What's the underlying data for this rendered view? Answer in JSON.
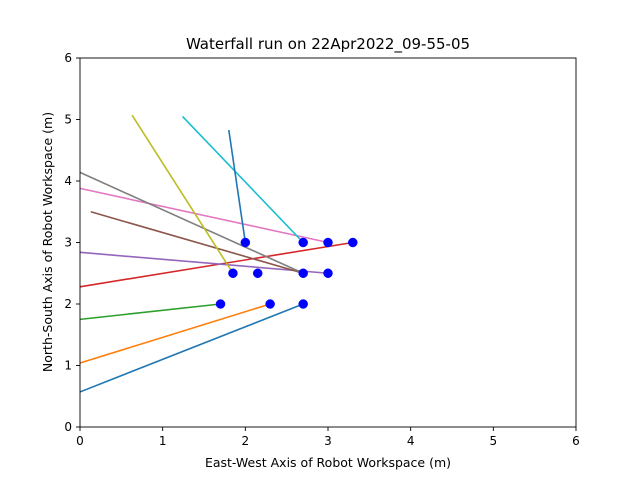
{
  "chart_data": {
    "type": "line",
    "title": "Waterfall run on 22Apr2022_09-55-05",
    "xlabel": "East-West Axis of Robot Workspace (m)",
    "ylabel": "North-South Axis of Robot Workspace (m)",
    "xlim": [
      0,
      6
    ],
    "ylim": [
      0,
      6
    ],
    "xticks": [
      "0",
      "1",
      "2",
      "3",
      "4",
      "5",
      "6"
    ],
    "yticks": [
      "0",
      "1",
      "2",
      "3",
      "4",
      "5",
      "6"
    ],
    "grid": false,
    "marker_color": "#0000ff",
    "series": [
      {
        "color": "#1f77b4",
        "points": [
          [
            0.0,
            0.57
          ],
          [
            2.7,
            2.0
          ]
        ]
      },
      {
        "color": "#ff7f0e",
        "points": [
          [
            0.0,
            1.04
          ],
          [
            2.3,
            2.0
          ]
        ]
      },
      {
        "color": "#2ca02c",
        "points": [
          [
            0.0,
            1.75
          ],
          [
            1.7,
            2.0
          ]
        ]
      },
      {
        "color": "#d62728",
        "points": [
          [
            0.0,
            2.28
          ],
          [
            3.3,
            3.0
          ]
        ]
      },
      {
        "color": "#9467bd",
        "points": [
          [
            0.0,
            2.84
          ],
          [
            3.0,
            2.5
          ]
        ]
      },
      {
        "color": "#8c564b",
        "points": [
          [
            0.13,
            3.5
          ],
          [
            2.7,
            2.5
          ]
        ]
      },
      {
        "color": "#e377c2",
        "points": [
          [
            0.0,
            3.88
          ],
          [
            3.0,
            3.0
          ]
        ]
      },
      {
        "color": "#7f7f7f",
        "points": [
          [
            0.0,
            4.14
          ],
          [
            2.7,
            2.5
          ]
        ]
      },
      {
        "color": "#bcbd22",
        "points": [
          [
            0.63,
            5.07
          ],
          [
            1.85,
            2.5
          ]
        ]
      },
      {
        "color": "#17becf",
        "points": [
          [
            1.24,
            5.05
          ],
          [
            2.7,
            3.0
          ]
        ]
      },
      {
        "color": "#1f77b4",
        "points": [
          [
            1.8,
            4.83
          ],
          [
            2.0,
            3.0
          ]
        ]
      },
      {
        "color": "#ff7f0e",
        "points": [
          [
            2.15,
            2.5
          ],
          [
            2.15,
            2.5
          ]
        ]
      }
    ],
    "markers": [
      [
        2.7,
        2.0
      ],
      [
        2.3,
        2.0
      ],
      [
        1.7,
        2.0
      ],
      [
        1.85,
        2.5
      ],
      [
        2.15,
        2.5
      ],
      [
        2.7,
        2.5
      ],
      [
        3.0,
        2.5
      ],
      [
        2.0,
        3.0
      ],
      [
        2.7,
        3.0
      ],
      [
        3.0,
        3.0
      ],
      [
        3.3,
        3.0
      ]
    ]
  }
}
